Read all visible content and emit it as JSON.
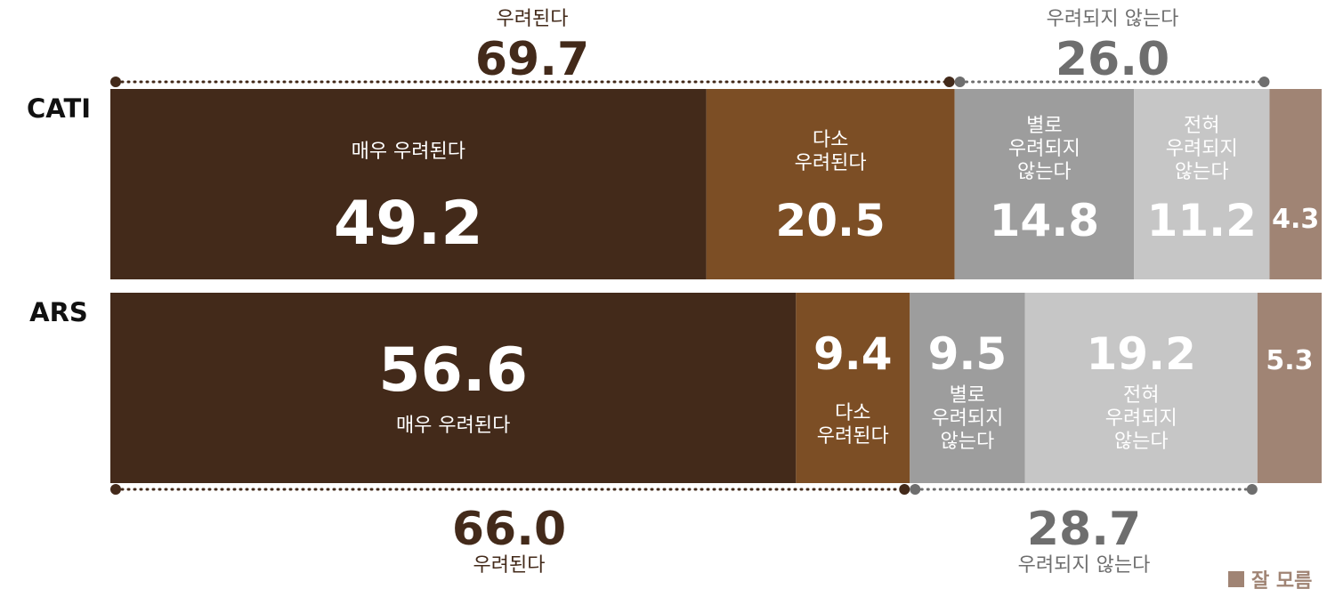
{
  "chart_data": {
    "type": "bar",
    "stacked": true,
    "orientation": "horizontal",
    "categories": [
      "CATI",
      "ARS"
    ],
    "series": [
      {
        "name": "매우 우려된다",
        "values": [
          49.2,
          56.6
        ],
        "color": "#432a1a"
      },
      {
        "name": "다소 우려된다",
        "values": [
          20.5,
          9.4
        ],
        "color": "#7c4e25"
      },
      {
        "name": "별로 우려되지 않는다",
        "values": [
          14.8,
          9.5
        ],
        "color": "#9d9d9d"
      },
      {
        "name": "전혀 우려되지 않는다",
        "values": [
          11.2,
          19.2
        ],
        "color": "#c6c6c6"
      },
      {
        "name": "잘 모름",
        "values": [
          4.3,
          5.3
        ],
        "color": "#a08474"
      }
    ],
    "segment_labels": {
      "CATI": [
        "매우 우려된다",
        "다소\n우려된다",
        "별로\n우려되지\n않는다",
        "전혀\n우려되지\n않는다",
        ""
      ],
      "ARS": [
        "매우 우려된다",
        "다소\n우려된다",
        "별로\n우려되지\n않는다",
        "전혀\n우려되지\n않는다",
        ""
      ]
    },
    "summaries": {
      "CATI": [
        {
          "label": "우려된다",
          "value": "69.7"
        },
        {
          "label": "우려되지 않는다",
          "value": "26.0"
        }
      ],
      "ARS": [
        {
          "label": "우려된다",
          "value": "66.0"
        },
        {
          "label": "우려되지 않는다",
          "value": "28.7"
        }
      ]
    },
    "legend": {
      "label": "잘 모름",
      "placement": "bottom-right"
    },
    "xlim": [
      0,
      100
    ]
  },
  "colors": {
    "brown_dark": "#432a1a",
    "grey_dark": "#6e6e6e"
  }
}
